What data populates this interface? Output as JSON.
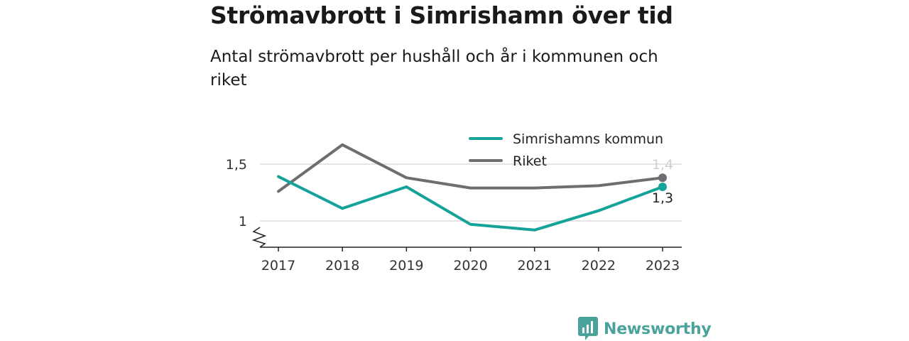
{
  "header": {
    "title": "Strömavbrott i Simrishamn över tid",
    "subtitle": "Antal strömavbrott per hushåll och år i kommunen och riket"
  },
  "brand": {
    "name": "Newsworthy",
    "icon": "newsworthy-logo-icon",
    "color": "#4aa39b"
  },
  "chart_data": {
    "type": "line",
    "x": [
      "2017",
      "2018",
      "2019",
      "2020",
      "2021",
      "2022",
      "2023"
    ],
    "series": [
      {
        "name": "Simrishamns kommun",
        "color": "#14a39a",
        "values": [
          1.39,
          1.11,
          1.3,
          0.97,
          0.92,
          1.09,
          1.3
        ]
      },
      {
        "name": "Riket",
        "color": "#6d6d72",
        "values": [
          1.26,
          1.67,
          1.38,
          1.29,
          1.29,
          1.31,
          1.38
        ]
      }
    ],
    "end_labels": [
      "1,3",
      "1,4"
    ],
    "y_ticks": [
      {
        "value": 1,
        "label": "1"
      },
      {
        "value": 1.5,
        "label": "1,5"
      }
    ],
    "ylim": [
      0.78,
      1.75
    ],
    "y_axis_break": true,
    "grid": true,
    "legend": "top-right"
  }
}
